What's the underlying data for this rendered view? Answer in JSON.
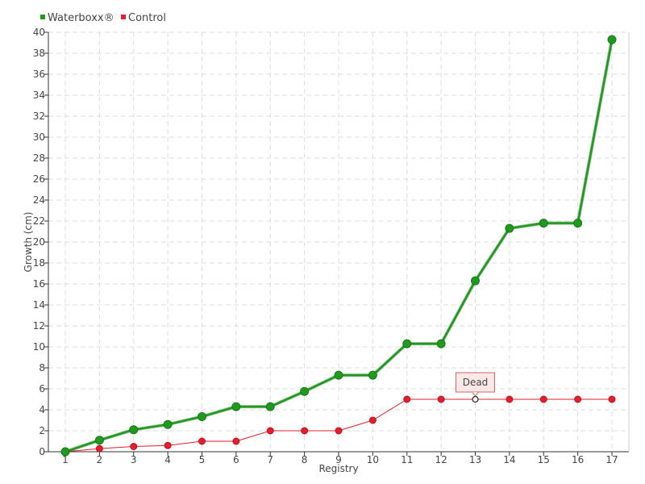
{
  "chart_data": {
    "type": "line",
    "categories": [
      "1",
      "2",
      "3",
      "4",
      "5",
      "6",
      "7",
      "8",
      "9",
      "10",
      "11",
      "12",
      "13",
      "14",
      "15",
      "16",
      "17"
    ],
    "series": [
      {
        "name": "Waterboxx®",
        "color": "#1f9a1f",
        "values": [
          0,
          1.1,
          2.1,
          2.6,
          3.35,
          4.3,
          4.3,
          5.75,
          7.3,
          7.3,
          10.3,
          10.3,
          16.3,
          21.3,
          21.8,
          21.8,
          39.3
        ]
      },
      {
        "name": "Control",
        "color": "#e0202e",
        "values": [
          0,
          0.3,
          0.5,
          0.6,
          1.0,
          1.0,
          2.0,
          2.0,
          2.0,
          3.0,
          5.0,
          5.0,
          5.0,
          5.0,
          5.0,
          5.0,
          5.0
        ]
      }
    ],
    "title": "",
    "xlabel": "Registry",
    "ylabel": "Growth (cm)",
    "ylim": [
      0,
      40
    ],
    "yticks": [
      "0",
      "2",
      "4",
      "6",
      "8",
      "10",
      "12",
      "14",
      "16",
      "18",
      "20",
      "22",
      "24",
      "26",
      "28",
      "30",
      "32",
      "34",
      "36",
      "38",
      "40"
    ],
    "grid": true,
    "legend_position": "top-left",
    "annotations": [
      {
        "text": "Dead",
        "series": "Control",
        "category": "13"
      }
    ]
  }
}
